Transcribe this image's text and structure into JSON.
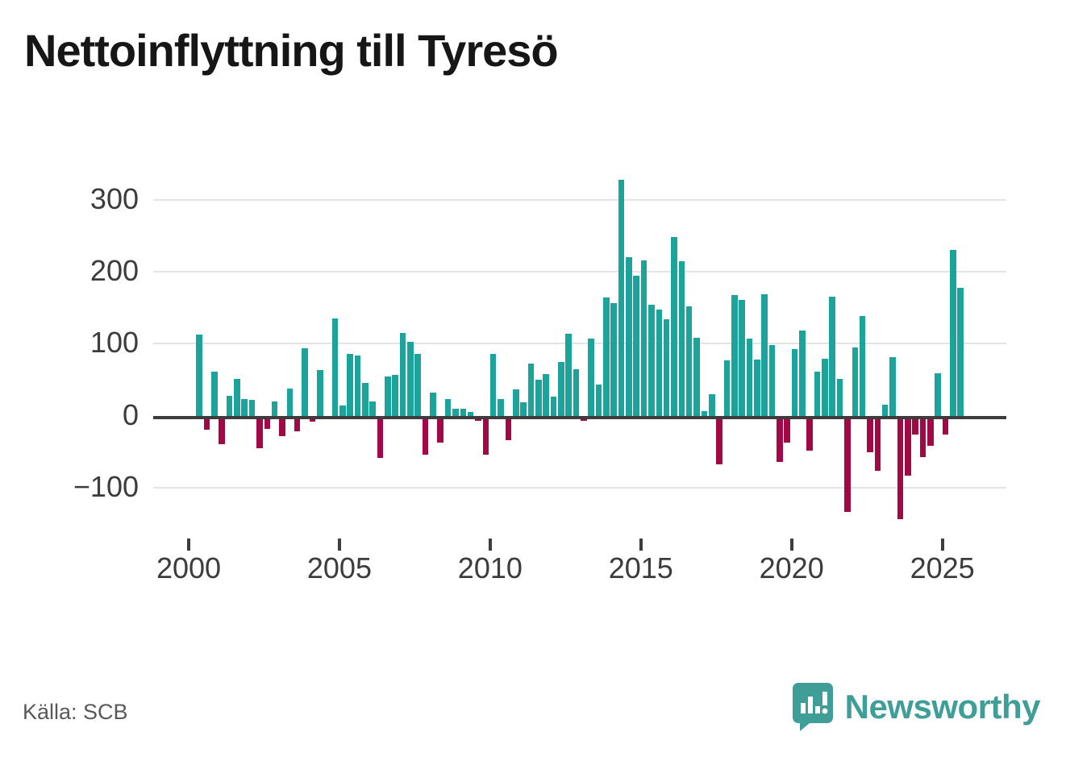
{
  "title": "Nettoinflyttning till Tyresö",
  "source": "Källa: SCB",
  "brand": {
    "name": "Newsworthy",
    "icon": "bar-chart-pin-icon"
  },
  "colors": {
    "positive_bar": "#1ba39c",
    "negative_bar": "#a20845",
    "baseline": "#3d3d3d",
    "gridline": "#e4e4e4",
    "axis_text": "#3c3c3c",
    "title_text": "#161616",
    "source_text": "#595959",
    "brand_teal": "#3f9e98"
  },
  "chart_data": {
    "type": "bar",
    "title": "Nettoinflyttning till Tyresö",
    "xlabel": "",
    "ylabel": "",
    "frequency": "quarterly",
    "grid": true,
    "ylim": [
      -164,
      342
    ],
    "ytick_values": [
      300,
      200,
      100,
      0,
      -100
    ],
    "ytick_labels": [
      "300",
      "200",
      "100",
      "0",
      "−100"
    ],
    "xtick_years": [
      2000,
      2005,
      2010,
      2015,
      2020,
      2025
    ],
    "xtick_labels": [
      "2000",
      "2005",
      "2010",
      "2015",
      "2020",
      "2025"
    ],
    "x": [
      "2000 Q2",
      "2000 Q3",
      "2000 Q4",
      "2001 Q1",
      "2001 Q2",
      "2001 Q3",
      "2001 Q4",
      "2002 Q1",
      "2002 Q2",
      "2002 Q3",
      "2002 Q4",
      "2003 Q1",
      "2003 Q2",
      "2003 Q3",
      "2003 Q4",
      "2004 Q1",
      "2004 Q2",
      "2004 Q3",
      "2004 Q4",
      "2005 Q1",
      "2005 Q2",
      "2005 Q3",
      "2005 Q4",
      "2006 Q1",
      "2006 Q2",
      "2006 Q3",
      "2006 Q4",
      "2007 Q1",
      "2007 Q2",
      "2007 Q3",
      "2007 Q4",
      "2008 Q1",
      "2008 Q2",
      "2008 Q3",
      "2008 Q4",
      "2009 Q1",
      "2009 Q2",
      "2009 Q3",
      "2009 Q4",
      "2010 Q1",
      "2010 Q2",
      "2010 Q3",
      "2010 Q4",
      "2011 Q1",
      "2011 Q2",
      "2011 Q3",
      "2011 Q4",
      "2012 Q1",
      "2012 Q2",
      "2012 Q3",
      "2012 Q4",
      "2013 Q1",
      "2013 Q2",
      "2013 Q3",
      "2013 Q4",
      "2014 Q1",
      "2014 Q2",
      "2014 Q3",
      "2014 Q4",
      "2015 Q1",
      "2015 Q2",
      "2015 Q3",
      "2015 Q4",
      "2016 Q1",
      "2016 Q2",
      "2016 Q3",
      "2016 Q4",
      "2017 Q1",
      "2017 Q2",
      "2017 Q3",
      "2017 Q4",
      "2018 Q1",
      "2018 Q2",
      "2018 Q3",
      "2018 Q4",
      "2019 Q1",
      "2019 Q2",
      "2019 Q3",
      "2019 Q4",
      "2020 Q1",
      "2020 Q2",
      "2020 Q3",
      "2020 Q4",
      "2021 Q1",
      "2021 Q2",
      "2021 Q3",
      "2021 Q4",
      "2022 Q1",
      "2022 Q2",
      "2022 Q3",
      "2022 Q4",
      "2023 Q1",
      "2023 Q2",
      "2023 Q3",
      "2023 Q4",
      "2024 Q1",
      "2024 Q2",
      "2024 Q3",
      "2024 Q4",
      "2025 Q1",
      "2025 Q2",
      "2025 Q3"
    ],
    "values": [
      112,
      -17,
      61,
      -38,
      27,
      51,
      23,
      22,
      -43,
      -16,
      20,
      -26,
      38,
      -20,
      93,
      -6,
      63,
      0,
      135,
      14,
      86,
      83,
      45,
      20,
      -57,
      54,
      57,
      115,
      102,
      86,
      -52,
      32,
      -35,
      23,
      10,
      9,
      5,
      -5,
      -52,
      86,
      23,
      -32,
      36,
      18,
      72,
      50,
      58,
      26,
      74,
      114,
      64,
      -5,
      107,
      43,
      164,
      156,
      327,
      220,
      194,
      215,
      154,
      147,
      134,
      248,
      214,
      152,
      108,
      6,
      30,
      -66,
      77,
      167,
      161,
      107,
      78,
      169,
      98,
      -62,
      -35,
      92,
      118,
      -46,
      61,
      79,
      165,
      51,
      -131,
      95,
      138,
      -49,
      -75,
      15,
      81,
      -142,
      -81,
      -24,
      -55,
      -40,
      59,
      -24,
      230,
      177
    ]
  }
}
